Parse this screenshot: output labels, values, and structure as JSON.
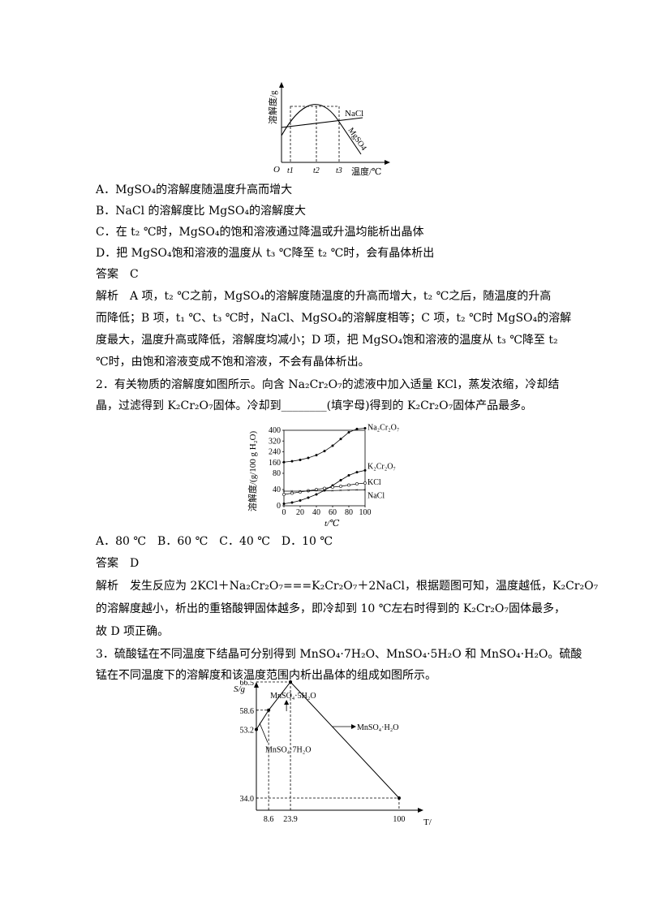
{
  "q1": {
    "chart": {
      "ylabel": "溶解度/g",
      "xlabel": "温度/℃",
      "origin": "O",
      "ticks": [
        "t1",
        "t2",
        "t3"
      ],
      "nacl": "NaCl",
      "mgso4": "MgSO4"
    },
    "options": {
      "a": "A．MgSO₄的溶解度随温度升高而增大",
      "b": "B．NaCl 的溶解度比 MgSO₄的溶解度大",
      "c": "C．在 t₂ ℃时，MgSO₄的饱和溶液通过降温或升温均能析出晶体",
      "d": "D．把 MgSO₄饱和溶液的温度从 t₃ ℃降至 t₂ ℃时，会有晶体析出"
    },
    "answer": "答案　C",
    "analysis": [
      "解析　A 项，t₂ ℃之前，MgSO₄的溶解度随温度的升高而增大，t₂ ℃之后，随温度的升高",
      "而降低；B 项，t₁ ℃、t₃ ℃时，NaCl、MgSO₄的溶解度相等；C 项，t₂ ℃时 MgSO₄的溶解",
      "度最大，温度升高或降低，溶解度均减小；D 项，把 MgSO₄饱和溶液的温度从 t₃ ℃降至 t₂",
      "℃时，由饱和溶液变成不饱和溶液，不会有晶体析出。"
    ]
  },
  "q2": {
    "stem": [
      "2．有关物质的溶解度如图所示。向含 Na₂Cr₂O₇的滤液中加入适量 KCl，蒸发浓缩，冷却结",
      "晶，过滤得到 K₂Cr₂O₇固体。冷却到________(填字母)得到的 K₂Cr₂O₇固体产品最多。"
    ],
    "chart_data": {
      "type": "line",
      "ylabel": "溶解度/(g/100 g H₂O)",
      "xlabel": "t/℃",
      "x": [
        0,
        10,
        20,
        30,
        40,
        50,
        60,
        70,
        80,
        90,
        100
      ],
      "xticks": [
        "0",
        "20",
        "40",
        "60",
        "80",
        "100"
      ],
      "yticks": [
        "0",
        "40",
        "80",
        "160",
        "240",
        "320",
        "400"
      ],
      "series": [
        {
          "name": "Na₂Cr₂O₇",
          "values": [
            163,
            170,
            180,
            195,
            215,
            245,
            285,
            335,
            385,
            410,
            415
          ]
        },
        {
          "name": "K₂Cr₂O₇",
          "values": [
            5,
            8,
            13,
            20,
            28,
            38,
            50,
            63,
            75,
            88,
            102
          ]
        },
        {
          "name": "KCl",
          "values": [
            28,
            31,
            34,
            37,
            40,
            43,
            46,
            48,
            51,
            54,
            56
          ]
        },
        {
          "name": "NaCl",
          "values": [
            36,
            36,
            36,
            36.5,
            37,
            37,
            37.5,
            38,
            38.5,
            39,
            39.5
          ]
        }
      ]
    },
    "options": "A．80 ℃　B．60 ℃　C．40 ℃　D．10 ℃",
    "answer": "答案　D",
    "analysis": [
      "解析　发生反应为 2KCl＋Na₂Cr₂O₇===K₂Cr₂O₇＋2NaCl，根据题图可知，温度越低，K₂Cr₂O₇",
      "的溶解度越小，析出的重铬酸钾固体越多，即冷却到 10 ℃左右时得到的 K₂Cr₂O₇固体最多，",
      "故 D 项正确。"
    ]
  },
  "q3": {
    "stem": [
      "3．硫酸锰在不同温度下结晶可分别得到 MnSO₄·7H₂O、MnSO₄·5H₂O 和 MnSO₄·H₂O。硫酸",
      "锰在不同温度下的溶解度和该温度范围内析出晶体的组成如图所示。"
    ],
    "chart_data": {
      "type": "line",
      "ylabel": "S/g",
      "xlabel": "T/℃",
      "x": [
        0,
        8.6,
        23.9,
        100
      ],
      "values": [
        53.2,
        58.6,
        66.5,
        34.0
      ],
      "xticks": [
        "8.6",
        "23.9",
        "100"
      ],
      "yticks": [
        "66.5",
        "58.6",
        "53.2",
        "34.0"
      ],
      "labels": [
        "MnSO₄·5H₂O",
        "MnSO₄·7H₂O",
        "MnSO₄·H₂O"
      ]
    }
  }
}
